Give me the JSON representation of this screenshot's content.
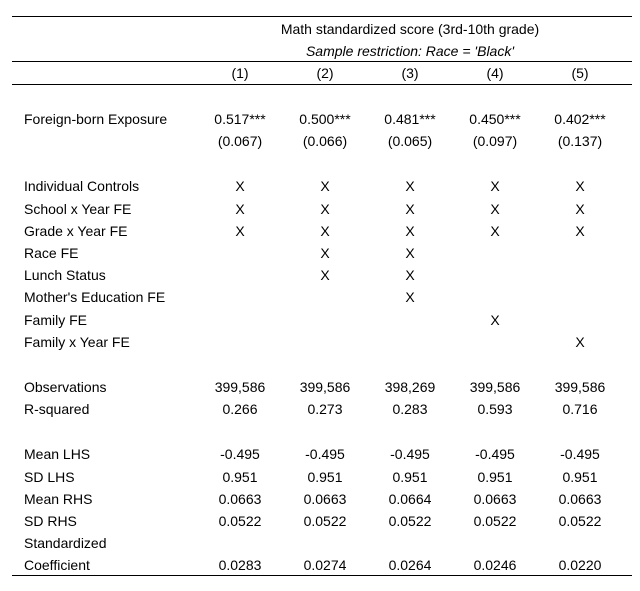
{
  "header": {
    "title": "Math standardized score (3rd-10th grade)",
    "subtitle": "Sample restriction: Race = 'Black'",
    "columns": [
      "(1)",
      "(2)",
      "(3)",
      "(4)",
      "(5)"
    ]
  },
  "rows": [
    {
      "label": "Foreign-born Exposure",
      "values": [
        "0.517***",
        "0.500***",
        "0.481***",
        "0.450***",
        "0.402***"
      ]
    },
    {
      "label": "",
      "values": [
        "(0.067)",
        "(0.066)",
        "(0.065)",
        "(0.097)",
        "(0.137)"
      ]
    },
    null,
    {
      "label": "Individual Controls",
      "values": [
        "X",
        "X",
        "X",
        "X",
        "X"
      ]
    },
    {
      "label": "School x Year FE",
      "values": [
        "X",
        "X",
        "X",
        "X",
        "X"
      ]
    },
    {
      "label": "Grade x Year FE",
      "values": [
        "X",
        "X",
        "X",
        "X",
        "X"
      ]
    },
    {
      "label": "Race FE",
      "values": [
        "",
        "X",
        "X",
        "",
        ""
      ]
    },
    {
      "label": "Lunch Status",
      "values": [
        "",
        "X",
        "X",
        "",
        ""
      ]
    },
    {
      "label": "Mother's Education FE",
      "values": [
        "",
        "",
        "X",
        "",
        ""
      ]
    },
    {
      "label": "Family FE",
      "values": [
        "",
        "",
        "",
        "X",
        ""
      ]
    },
    {
      "label": "Family x Year FE",
      "values": [
        "",
        "",
        "",
        "",
        "X"
      ]
    },
    null,
    {
      "label": "Observations",
      "values": [
        "399,586",
        "399,586",
        "398,269",
        "399,586",
        "399,586"
      ]
    },
    {
      "label": "R-squared",
      "values": [
        "0.266",
        "0.273",
        "0.283",
        "0.593",
        "0.716"
      ]
    },
    null,
    {
      "label": "Mean LHS",
      "values": [
        "-0.495",
        "-0.495",
        "-0.495",
        "-0.495",
        "-0.495"
      ]
    },
    {
      "label": "SD LHS",
      "values": [
        "0.951",
        "0.951",
        "0.951",
        "0.951",
        "0.951"
      ]
    },
    {
      "label": "Mean RHS",
      "values": [
        "0.0663",
        "0.0663",
        "0.0664",
        "0.0663",
        "0.0663"
      ]
    },
    {
      "label": "SD RHS",
      "values": [
        "0.0522",
        "0.0522",
        "0.0522",
        "0.0522",
        "0.0522"
      ]
    },
    {
      "label": "Standardized",
      "values": [
        "",
        "",
        "",
        "",
        ""
      ]
    },
    {
      "label": "Coefficient",
      "values": [
        "0.0283",
        "0.0274",
        "0.0264",
        "0.0246",
        "0.0220"
      ]
    }
  ]
}
